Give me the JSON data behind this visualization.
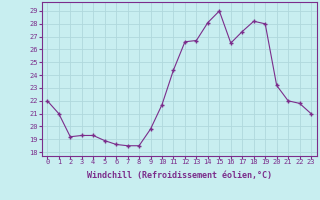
{
  "x": [
    0,
    1,
    2,
    3,
    4,
    5,
    6,
    7,
    8,
    9,
    10,
    11,
    12,
    13,
    14,
    15,
    16,
    17,
    18,
    19,
    20,
    21,
    22,
    23
  ],
  "y": [
    22,
    21,
    19.2,
    19.3,
    19.3,
    18.9,
    18.6,
    18.5,
    18.5,
    19.8,
    21.7,
    24.4,
    26.6,
    26.7,
    28.1,
    29.0,
    26.5,
    27.4,
    28.2,
    28.0,
    23.2,
    22.0,
    21.8,
    21.0
  ],
  "line_color": "#7b2d8b",
  "marker": "D",
  "marker_size": 2.0,
  "bg_color": "#c8eef0",
  "grid_color": "#b0d8dc",
  "xlabel": "Windchill (Refroidissement éolien,°C)",
  "ylabel_ticks": [
    18,
    19,
    20,
    21,
    22,
    23,
    24,
    25,
    26,
    27,
    28,
    29
  ],
  "xticks": [
    0,
    1,
    2,
    3,
    4,
    5,
    6,
    7,
    8,
    9,
    10,
    11,
    12,
    13,
    14,
    15,
    16,
    17,
    18,
    19,
    20,
    21,
    22,
    23
  ],
  "ylim": [
    17.7,
    29.7
  ],
  "xlim": [
    -0.5,
    23.5
  ]
}
